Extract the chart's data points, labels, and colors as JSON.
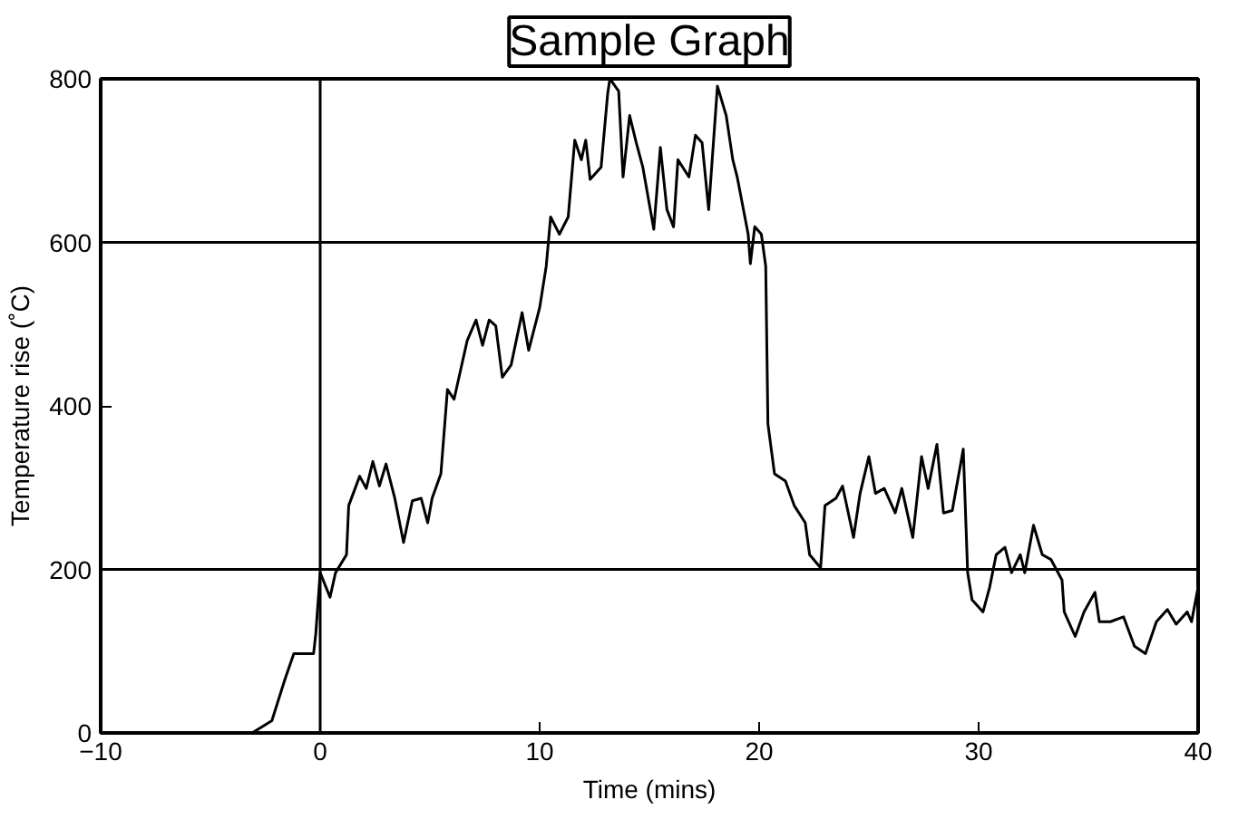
{
  "chart_data": {
    "type": "line",
    "title": "Sample Graph",
    "xlabel": "Time (mins)",
    "ylabel": "Temperature rise (˚C)",
    "xlim": [
      -10,
      40
    ],
    "xticks": [
      -10,
      0,
      10,
      20,
      30,
      40
    ],
    "ylim": [
      0,
      800
    ],
    "yticks": [
      0,
      200,
      400,
      600,
      800
    ],
    "grid": false,
    "marker": "none",
    "line_style": "solid",
    "ref_lines": [
      {
        "axis": "y",
        "value": 600
      },
      {
        "axis": "y",
        "value": 200
      },
      {
        "axis": "x",
        "value": 0
      }
    ],
    "series": [
      {
        "color": "#000000",
        "x": [
          -3.1,
          -2.2,
          -1.6,
          -1.2,
          -0.3,
          -0.2,
          0,
          0.45,
          0.7,
          1.2,
          1.3,
          1.8,
          2.1,
          2.4,
          2.7,
          3.0,
          3.4,
          3.8,
          4.2,
          4.6,
          4.9,
          5.1,
          5.5,
          5.8,
          6.1,
          6.4,
          6.7,
          7.1,
          7.4,
          7.7,
          8.0,
          8.3,
          8.7,
          9.2,
          9.5,
          10,
          10.3,
          10.5,
          10.9,
          11.3,
          11.6,
          11.9,
          12.1,
          12.3,
          12.8,
          13.1,
          13.2,
          13.6,
          13.8,
          14.1,
          14.4,
          14.7,
          15.2,
          15.5,
          15.8,
          16.1,
          16.3,
          16.8,
          17.1,
          17.4,
          17.7,
          18.1,
          18.5,
          18.8,
          19.0,
          19.5,
          19.6,
          19.8,
          20.1,
          20.3,
          20.4,
          20.7,
          21.2,
          21.6,
          22.1,
          22.3,
          22.8,
          23.0,
          23.5,
          23.8,
          24.3,
          24.6,
          25.0,
          25.3,
          25.7,
          26.2,
          26.5,
          27.0,
          27.4,
          27.7,
          28.1,
          28.4,
          28.8,
          29.3,
          29.5,
          29.7,
          30.2,
          30.5,
          30.8,
          31.2,
          31.5,
          31.9,
          32.1,
          32.5,
          32.9,
          33.3,
          33.8,
          33.9,
          34.4,
          34.8,
          35.3,
          35.5,
          36.0,
          36.6,
          37.1,
          37.6,
          38.1,
          38.6,
          39.0,
          39.5,
          39.7,
          40.0
        ],
        "values": [
          0,
          15,
          66,
          97,
          97,
          121,
          196,
          166,
          196,
          218,
          278,
          314,
          299,
          332,
          302,
          329,
          287,
          233,
          284,
          287,
          257,
          287,
          317,
          420,
          408,
          444,
          480,
          505,
          474,
          505,
          498,
          435,
          450,
          514,
          468,
          520,
          571,
          631,
          610,
          631,
          725,
          701,
          725,
          677,
          692,
          782,
          800,
          785,
          680,
          755,
          722,
          692,
          616,
          716,
          640,
          619,
          701,
          680,
          731,
          722,
          640,
          791,
          755,
          701,
          680,
          610,
          574,
          619,
          610,
          571,
          378,
          317,
          308,
          278,
          257,
          218,
          202,
          278,
          287,
          302,
          239,
          293,
          338,
          293,
          299,
          269,
          299,
          239,
          338,
          299,
          353,
          269,
          272,
          347,
          196,
          163,
          148,
          178,
          218,
          227,
          196,
          218,
          196,
          254,
          218,
          212,
          187,
          148,
          118,
          148,
          172,
          136,
          136,
          142,
          106,
          97,
          136,
          151,
          133,
          148,
          136,
          178
        ]
      }
    ]
  }
}
